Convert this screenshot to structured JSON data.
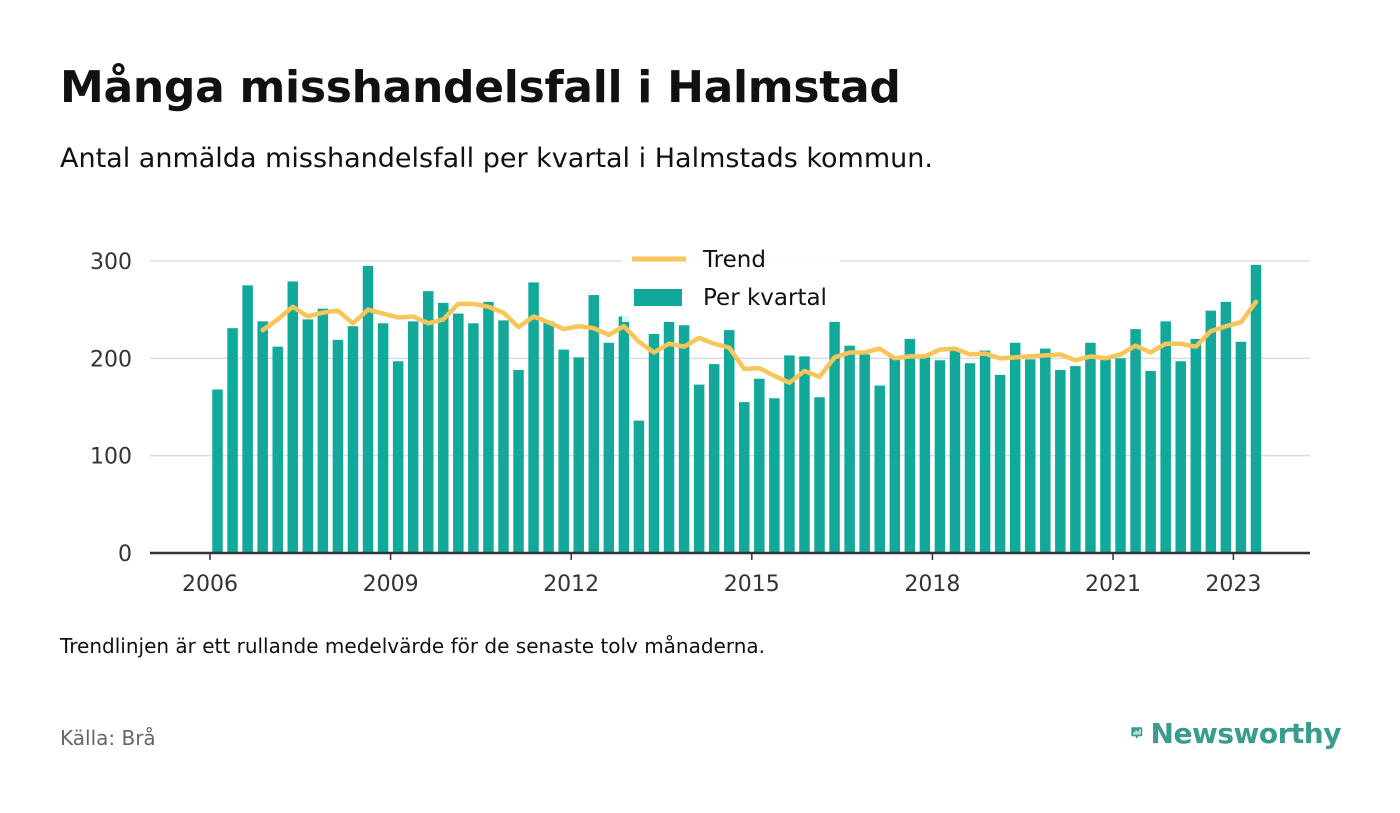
{
  "title": "Många misshandelsfall i Halmstad",
  "subtitle": "Antal anmälda misshandelsfall per kvartal i Halmstads kommun.",
  "footnote": "Trendlinjen är ett rullande medelvärde för de senaste tolv månaderna.",
  "source": "Källa: Brå",
  "brand": {
    "name": "Newsworthy"
  },
  "colors": {
    "bars": "#12a89a",
    "trend": "#f9c55a",
    "axis": "#333333",
    "grid": "#dddddd",
    "brand": "#3a9b8f"
  },
  "chart_data": {
    "type": "bar",
    "x_ticks": [
      "2006",
      "2009",
      "2012",
      "2015",
      "2018",
      "2021",
      "2023"
    ],
    "y_ticks": [
      "0",
      "100",
      "200",
      "300"
    ],
    "ylim": [
      0,
      300
    ],
    "grid": true,
    "legend_position": "top-center",
    "legend": [
      "Trend",
      "Per kvartal"
    ],
    "series": [
      {
        "name": "Per kvartal",
        "type": "bar",
        "x": [
          "2006 Q1",
          "2006 Q2",
          "2006 Q3",
          "2006 Q4",
          "2007 Q1",
          "2007 Q2",
          "2007 Q3",
          "2007 Q4",
          "2008 Q1",
          "2008 Q2",
          "2008 Q3",
          "2008 Q4",
          "2009 Q1",
          "2009 Q2",
          "2009 Q3",
          "2009 Q4",
          "2010 Q1",
          "2010 Q2",
          "2010 Q3",
          "2010 Q4",
          "2011 Q1",
          "2011 Q2",
          "2011 Q3",
          "2011 Q4",
          "2012 Q1",
          "2012 Q2",
          "2012 Q3",
          "2012 Q4",
          "2013 Q1",
          "2013 Q2",
          "2013 Q3",
          "2013 Q4",
          "2014 Q1",
          "2014 Q2",
          "2014 Q3",
          "2014 Q4",
          "2015 Q1",
          "2015 Q2",
          "2015 Q3",
          "2015 Q4",
          "2016 Q1",
          "2016 Q2",
          "2016 Q3",
          "2016 Q4",
          "2017 Q1",
          "2017 Q2",
          "2017 Q3",
          "2017 Q4",
          "2018 Q1",
          "2018 Q2",
          "2018 Q3",
          "2018 Q4",
          "2019 Q1",
          "2019 Q2",
          "2019 Q3",
          "2019 Q4",
          "2020 Q1",
          "2020 Q2",
          "2020 Q3",
          "2020 Q4",
          "2021 Q1",
          "2021 Q2",
          "2021 Q3",
          "2021 Q4",
          "2022 Q1",
          "2022 Q2",
          "2022 Q3",
          "2022 Q4",
          "2023 Q1",
          "2023 Q2"
        ],
        "values": [
          168,
          231,
          275,
          238,
          212,
          279,
          240,
          251,
          219,
          233,
          295,
          236,
          197,
          238,
          269,
          257,
          246,
          236,
          258,
          239,
          188,
          278,
          238,
          209,
          201,
          265,
          216,
          243,
          136,
          225,
          238,
          234,
          173,
          194,
          229,
          155,
          179,
          159,
          203,
          202,
          160,
          238,
          213,
          204,
          172,
          201,
          220,
          201,
          198,
          208,
          195,
          208,
          183,
          216,
          199,
          210,
          188,
          192,
          216,
          200,
          200,
          230,
          187,
          238,
          197,
          220,
          249,
          258,
          217,
          296
        ]
      },
      {
        "name": "Trend",
        "type": "line",
        "x": [
          "2006 Q4",
          "2007 Q1",
          "2007 Q2",
          "2007 Q3",
          "2007 Q4",
          "2008 Q1",
          "2008 Q2",
          "2008 Q3",
          "2008 Q4",
          "2009 Q1",
          "2009 Q2",
          "2009 Q3",
          "2009 Q4",
          "2010 Q1",
          "2010 Q2",
          "2010 Q3",
          "2010 Q4",
          "2011 Q1",
          "2011 Q2",
          "2011 Q3",
          "2011 Q4",
          "2012 Q1",
          "2012 Q2",
          "2012 Q3",
          "2012 Q4",
          "2013 Q1",
          "2013 Q2",
          "2013 Q3",
          "2013 Q4",
          "2014 Q1",
          "2014 Q2",
          "2014 Q3",
          "2014 Q4",
          "2015 Q1",
          "2015 Q2",
          "2015 Q3",
          "2015 Q4",
          "2016 Q1",
          "2016 Q2",
          "2016 Q3",
          "2016 Q4",
          "2017 Q1",
          "2017 Q2",
          "2017 Q3",
          "2017 Q4",
          "2018 Q1",
          "2018 Q2",
          "2018 Q3",
          "2018 Q4",
          "2019 Q1",
          "2019 Q2",
          "2019 Q3",
          "2019 Q4",
          "2020 Q1",
          "2020 Q2",
          "2020 Q3",
          "2020 Q4",
          "2021 Q1",
          "2021 Q2",
          "2021 Q3",
          "2021 Q4",
          "2022 Q1",
          "2022 Q2",
          "2022 Q3",
          "2022 Q4",
          "2023 Q1",
          "2023 Q2"
        ],
        "values": [
          229,
          240,
          253,
          243,
          247,
          249,
          236,
          250,
          246,
          242,
          243,
          236,
          240,
          256,
          256,
          253,
          247,
          232,
          243,
          237,
          230,
          233,
          231,
          224,
          233,
          217,
          206,
          215,
          212,
          221,
          215,
          211,
          189,
          190,
          182,
          175,
          187,
          181,
          201,
          206,
          206,
          210,
          200,
          202,
          202,
          209,
          210,
          204,
          205,
          200,
          201,
          202,
          203,
          204,
          198,
          202,
          200,
          204,
          213,
          206,
          215,
          215,
          212,
          228,
          233,
          237,
          258
        ]
      }
    ]
  }
}
